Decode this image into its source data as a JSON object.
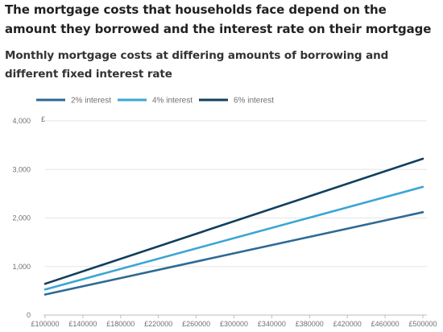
{
  "header": {
    "title": "The mortgage costs that households face depend on the amount they borrowed and the interest rate on their mortgage",
    "subtitle": "Monthly mortgage costs at differing amounts of borrowing and different fixed interest rate"
  },
  "chart_data": {
    "type": "line",
    "title": "The mortgage costs that households face depend on the amount they borrowed and the interest rate on their mortgage",
    "subtitle": "Monthly mortgage costs at differing amounts of borrowing and different fixed interest rate",
    "xlabel": "",
    "ylabel": "£",
    "x": [
      100000,
      500000
    ],
    "x_ticks": [
      "£100000",
      "£140000",
      "£180000",
      "£220000",
      "£260000",
      "£300000",
      "£340000",
      "£380000",
      "£420000",
      "£460000",
      "£500000"
    ],
    "x_tick_values": [
      100000,
      140000,
      180000,
      220000,
      260000,
      300000,
      340000,
      380000,
      420000,
      460000,
      500000
    ],
    "y_ticks": [
      "0",
      "1,000",
      "2,000",
      "3,000",
      "4,000"
    ],
    "y_tick_values": [
      0,
      1000,
      2000,
      3000,
      4000
    ],
    "xlim": [
      100000,
      500000
    ],
    "ylim": [
      0,
      4000
    ],
    "grid": "horizontal",
    "legend_position": "top-left",
    "series": [
      {
        "name": "2% interest",
        "color": "#2e6a94",
        "values": [
          424,
          2120
        ]
      },
      {
        "name": "4% interest",
        "color": "#3ba5d4",
        "values": [
          528,
          2640
        ]
      },
      {
        "name": "6% interest",
        "color": "#113f5c",
        "values": [
          644,
          3220
        ]
      }
    ]
  }
}
